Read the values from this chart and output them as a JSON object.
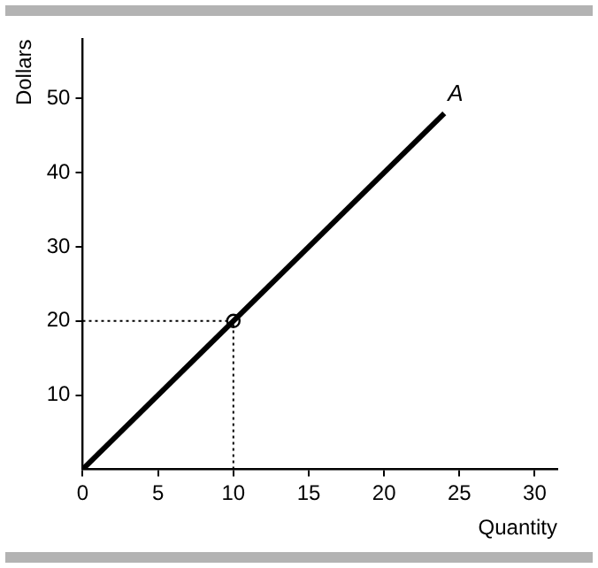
{
  "chart_data": {
    "type": "line",
    "xlabel": "Quantity",
    "ylabel": "Dollars",
    "xlim": [
      0,
      31.5
    ],
    "ylim": [
      0,
      58
    ],
    "xticks": [
      0,
      5,
      10,
      15,
      20,
      25,
      30
    ],
    "yticks": [
      10,
      20,
      30,
      40,
      50
    ],
    "grid": false,
    "legend": false,
    "series": [
      {
        "type": "line",
        "color": "#000000",
        "x": [
          0,
          24
        ],
        "values": [
          0,
          48
        ],
        "line_style": "solid",
        "marker": "none"
      },
      {
        "type": "line",
        "color": "#000000",
        "x": [
          0,
          10
        ],
        "values": [
          20,
          20
        ],
        "line_style": "dotted",
        "marker": "none"
      },
      {
        "type": "line",
        "color": "#000000",
        "x": [
          10,
          10
        ],
        "values": [
          0,
          20
        ],
        "line_style": "dotted",
        "marker": "none"
      },
      {
        "type": "scatter",
        "color": "#000000",
        "x": [
          10
        ],
        "values": [
          20
        ],
        "marker": "circle"
      }
    ],
    "annotations": [
      {
        "text": "A",
        "x": 24,
        "y": 48
      }
    ]
  }
}
